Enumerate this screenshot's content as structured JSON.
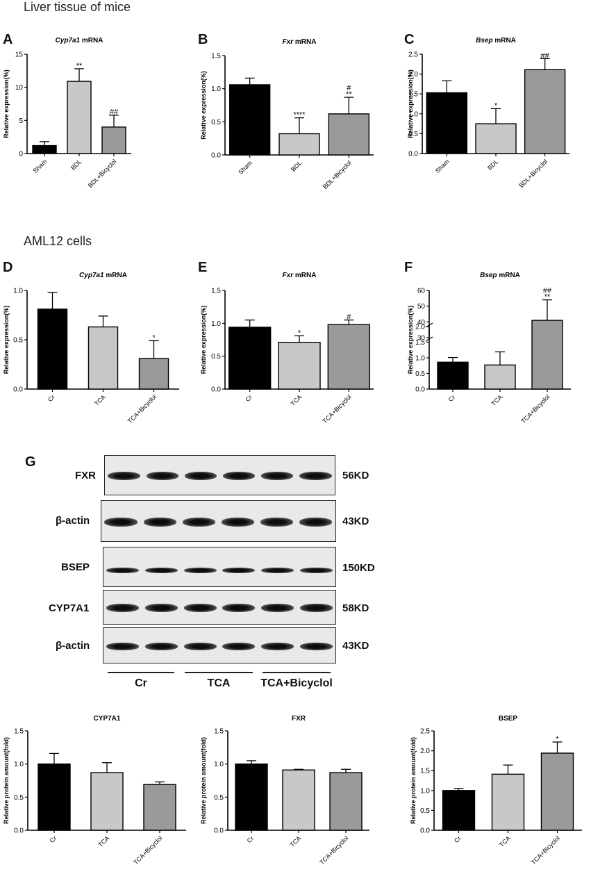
{
  "sections": {
    "liver": "Liver tissue of mice",
    "aml12": "AML12 cells"
  },
  "panel_letters": [
    "A",
    "B",
    "C",
    "D",
    "E",
    "F",
    "G"
  ],
  "blot": {
    "rows": [
      {
        "label": "FXR",
        "kd": "56KD"
      },
      {
        "label": "β-actin",
        "kd": "43KD"
      },
      {
        "label": "BSEP",
        "kd": "150KD"
      },
      {
        "label": "CYP7A1",
        "kd": "58KD"
      },
      {
        "label": "β-actin",
        "kd": "43KD"
      }
    ],
    "groups": [
      "Cr",
      "TCA",
      "TCA+Bicyclol"
    ]
  },
  "colors": {
    "black": "#000000",
    "light": "#c8c8c8",
    "mid": "#9a9a9a"
  },
  "chart_data": [
    {
      "id": "A",
      "type": "bar",
      "title_italic": "Cyp7a1",
      "title_rest": " mRNA",
      "ylabel": "Relative expression(%)",
      "ylim": [
        0,
        15
      ],
      "yticks": [
        0,
        5,
        10,
        15
      ],
      "categories": [
        "Sham",
        "BDL",
        "BDL+Bicyclol"
      ],
      "values": [
        1.2,
        10.9,
        4.0
      ],
      "errors": [
        0.6,
        1.9,
        1.8
      ],
      "annotations": [
        [],
        [
          "**"
        ],
        [
          "##"
        ]
      ]
    },
    {
      "id": "B",
      "type": "bar",
      "title_italic": "Fxr",
      "title_rest": " mRNA",
      "ylabel": "Relative expression(%)",
      "ylim": [
        0,
        1.5
      ],
      "yticks": [
        0.0,
        0.5,
        1.0,
        1.5
      ],
      "categories": [
        "Sham",
        "BDL",
        "BDL+Bicyclol"
      ],
      "values": [
        1.06,
        0.32,
        0.62
      ],
      "errors": [
        0.1,
        0.24,
        0.25
      ],
      "annotations": [
        [],
        [
          "****"
        ],
        [
          "**",
          "#"
        ]
      ]
    },
    {
      "id": "C",
      "type": "bar",
      "title_italic": "Bsep",
      "title_rest": " mRNA",
      "ylabel": "Relative expression(%)",
      "ylim": [
        0,
        2.5
      ],
      "yticks": [
        0.0,
        0.5,
        1.0,
        1.5,
        2.0,
        2.5
      ],
      "categories": [
        "Sham",
        "BDL",
        "BDL+Bicyclol"
      ],
      "values": [
        1.53,
        0.75,
        2.11
      ],
      "errors": [
        0.3,
        0.38,
        0.28
      ],
      "annotations": [
        [],
        [
          "*"
        ],
        [
          "##"
        ]
      ]
    },
    {
      "id": "D",
      "type": "bar",
      "title_italic": "Cyp7a1",
      "title_rest": " mRNA",
      "ylabel": "Relative expression(%)",
      "ylim": [
        0,
        1.0
      ],
      "yticks": [
        0.0,
        0.5,
        1.0
      ],
      "categories": [
        "Cr",
        "TCA",
        "TCA+Bicyclol"
      ],
      "values": [
        0.81,
        0.63,
        0.31
      ],
      "errors": [
        0.17,
        0.11,
        0.18
      ],
      "annotations": [
        [],
        [],
        [
          "*"
        ]
      ]
    },
    {
      "id": "E",
      "type": "bar",
      "title_italic": "Fxr",
      "title_rest": " mRNA",
      "ylabel": "Relative expression(%)",
      "ylim": [
        0,
        1.5
      ],
      "yticks": [
        0.0,
        0.5,
        1.0,
        1.5
      ],
      "categories": [
        "Cr",
        "TCA",
        "TCA+Bicyclol"
      ],
      "values": [
        0.94,
        0.71,
        0.98
      ],
      "errors": [
        0.11,
        0.1,
        0.07
      ],
      "annotations": [
        [],
        [
          "*"
        ],
        [
          "#"
        ]
      ]
    },
    {
      "id": "F",
      "type": "bar",
      "broken_axis": true,
      "title_italic": "Bsep",
      "title_rest": " mRNA",
      "ylabel": "Relative expression(%)",
      "ylim_lower": [
        0,
        2.0
      ],
      "yticks_lower": [
        0.0,
        0.5,
        1.0,
        1.5,
        2.0
      ],
      "ylim_upper": [
        30,
        60
      ],
      "yticks_upper": [
        30,
        40,
        50,
        60
      ],
      "categories": [
        "Cr",
        "TCA",
        "TCA+Bicyclol"
      ],
      "values": [
        0.86,
        0.77,
        41.0
      ],
      "errors": [
        0.15,
        0.42,
        13.0
      ],
      "annotations": [
        [],
        [],
        [
          "**",
          "##"
        ]
      ]
    },
    {
      "id": "G1",
      "type": "bar",
      "title": "CYP7A1",
      "ylabel": "Relative protein amount(fold)",
      "ylim": [
        0,
        1.5
      ],
      "yticks": [
        0.0,
        0.5,
        1.0,
        1.5
      ],
      "categories": [
        "Cr",
        "TCA",
        "TCA+Bicyclol"
      ],
      "values": [
        1.0,
        0.87,
        0.69
      ],
      "errors": [
        0.16,
        0.15,
        0.04
      ],
      "annotations": [
        [],
        [],
        []
      ]
    },
    {
      "id": "G2",
      "type": "bar",
      "title": "FXR",
      "ylabel": "Relative protein amount(fold)",
      "ylim": [
        0,
        1.5
      ],
      "yticks": [
        0.0,
        0.5,
        1.0,
        1.5
      ],
      "categories": [
        "Cr",
        "TCA",
        "TCA+Bicyclol"
      ],
      "values": [
        1.0,
        0.91,
        0.87
      ],
      "errors": [
        0.05,
        0.01,
        0.05
      ],
      "annotations": [
        [],
        [],
        []
      ]
    },
    {
      "id": "G3",
      "type": "bar",
      "title": "BSEP",
      "ylabel": "Relative protein amount(fold)",
      "ylim": [
        0,
        2.5
      ],
      "yticks": [
        0.0,
        0.5,
        1.0,
        1.5,
        2.0,
        2.5
      ],
      "categories": [
        "Cr",
        "TCA",
        "TCA+Bicyclol"
      ],
      "values": [
        1.0,
        1.41,
        1.94
      ],
      "errors": [
        0.05,
        0.23,
        0.28
      ],
      "annotations": [
        [],
        [],
        [
          "*"
        ]
      ]
    }
  ]
}
